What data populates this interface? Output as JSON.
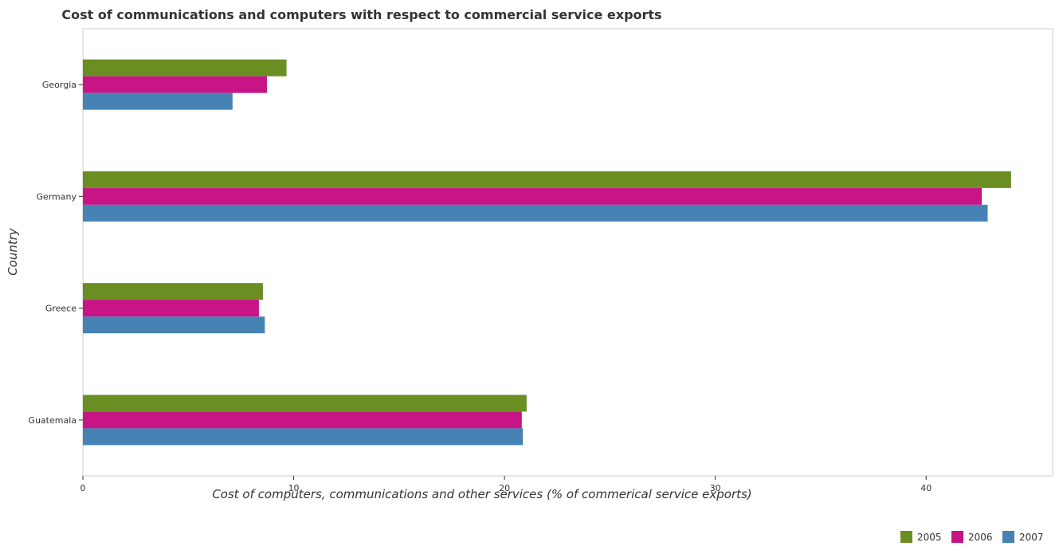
{
  "chart_data": {
    "type": "bar",
    "orientation": "horizontal",
    "title": "Cost of communications and computers with respect to commercial service exports",
    "xlabel": "Cost of computers, communications and other services (% of commerical service exports)",
    "ylabel": "Country",
    "categories": [
      "Georgia",
      "Germany",
      "Greece",
      "Guatemala"
    ],
    "xlim": [
      0,
      46
    ],
    "xticks": [
      0,
      10,
      20,
      30,
      40
    ],
    "xtick_labels": [
      "0",
      "10",
      "20",
      "30",
      "40"
    ],
    "grid": false,
    "legend_position": "bottom-right",
    "series": [
      {
        "name": "2005",
        "color": "#6b8e23",
        "values": [
          9.66,
          44.03,
          8.54,
          21.05
        ]
      },
      {
        "name": "2006",
        "color": "#c71585",
        "values": [
          8.73,
          42.64,
          8.35,
          20.82
        ]
      },
      {
        "name": "2007",
        "color": "#4682b4",
        "values": [
          7.1,
          42.92,
          8.63,
          20.87
        ]
      }
    ]
  }
}
